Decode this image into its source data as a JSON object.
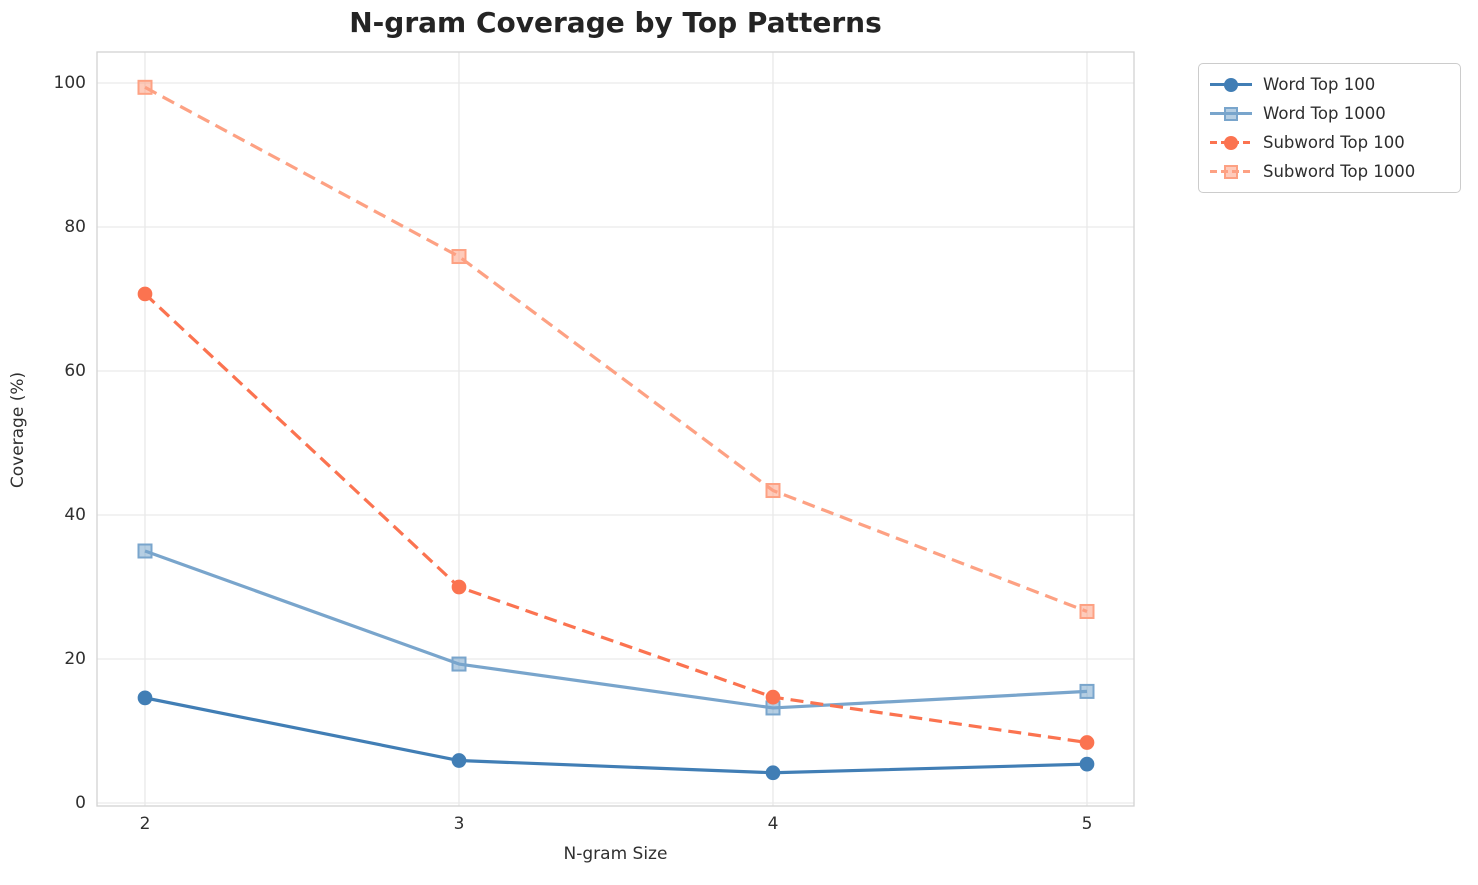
{
  "chart_data": {
    "type": "line",
    "title": "N-gram Coverage by Top Patterns",
    "xlabel": "N-gram Size",
    "ylabel": "Coverage (%)",
    "x": [
      2,
      3,
      4,
      5
    ],
    "xticks": [
      "2",
      "3",
      "4",
      "5"
    ],
    "yticks": [
      "0",
      "20",
      "40",
      "60",
      "80",
      "100"
    ],
    "ytick_values": [
      0,
      20,
      40,
      60,
      80,
      100
    ],
    "xlim": [
      1.85,
      5.15
    ],
    "ylim": [
      -0.4,
      104.3
    ],
    "grid": "on",
    "legend_position": "upper right outside",
    "series": [
      {
        "name": "Word Top 100",
        "color": "#417eb5",
        "line_style": "solid",
        "marker": "circle",
        "values": [
          14.6,
          5.9,
          4.2,
          5.4
        ]
      },
      {
        "name": "Word Top 1000",
        "color": "#79a5cc",
        "line_style": "solid",
        "marker": "square",
        "values": [
          35.0,
          19.3,
          13.2,
          15.5
        ]
      },
      {
        "name": "Subword Top 100",
        "color": "#fb7350",
        "line_style": "dashed",
        "marker": "circle",
        "values": [
          70.7,
          30.0,
          14.7,
          8.4
        ]
      },
      {
        "name": "Subword Top 1000",
        "color": "#fda183",
        "line_style": "dashed",
        "marker": "square",
        "values": [
          99.4,
          75.9,
          43.4,
          26.6
        ]
      }
    ],
    "colors": {
      "grid": "#e9e9e9",
      "spine": "#d3d3d3",
      "title_text": "#242424",
      "tick_text": "#303030",
      "legend_border": "#cccccc"
    }
  }
}
